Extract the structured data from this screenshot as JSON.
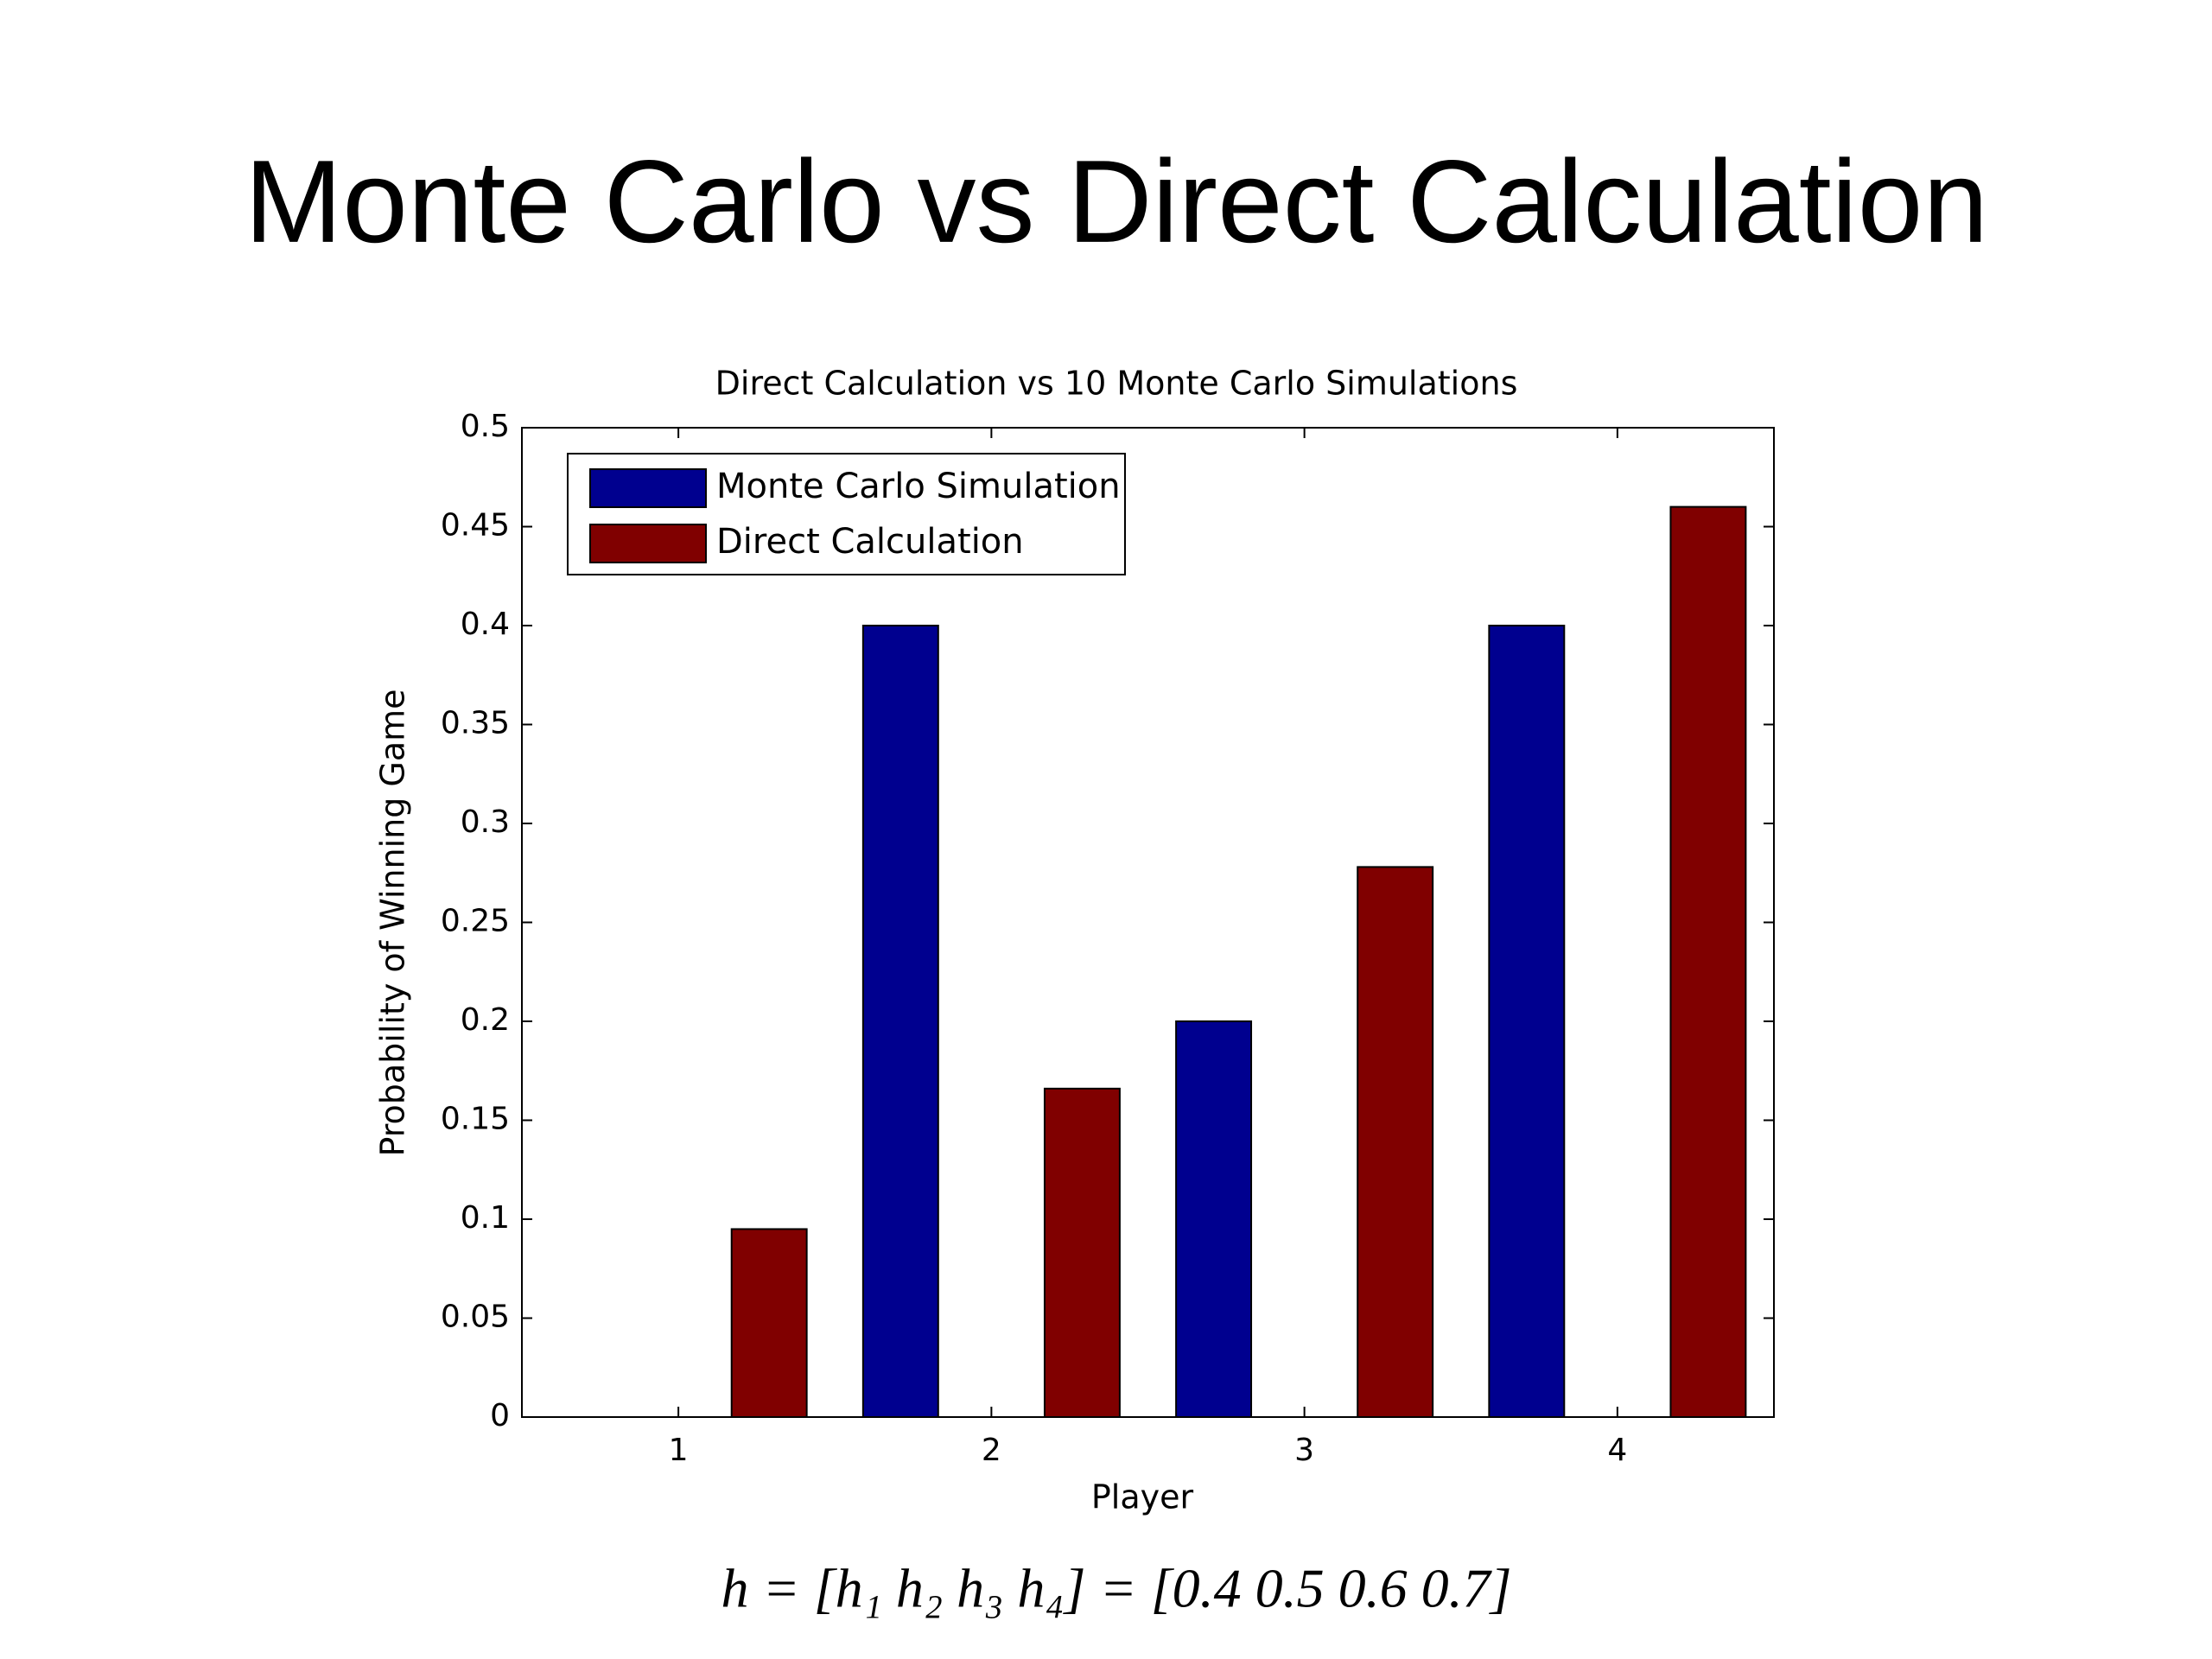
{
  "slide_title": "Monte Carlo vs Direct Calculation",
  "formula": "h = [h₁ h₂ h₃ h₄] = [0.4 0.5 0.6 0.7]",
  "chart_data": {
    "type": "bar",
    "title": "Direct Calculation vs 10 Monte Carlo Simulations",
    "x_label": "Player",
    "y_label": "Probability of Winning Game",
    "categories": [
      "1",
      "2",
      "3",
      "4"
    ],
    "series": [
      {
        "name": "Monte Carlo Simulation",
        "color": "#00008f",
        "values": [
          0,
          0.4,
          0.2,
          0.4
        ]
      },
      {
        "name": "Direct Calculation",
        "color": "#800000",
        "values": [
          0.095,
          0.166,
          0.278,
          0.46
        ]
      }
    ],
    "ylim": [
      0,
      0.5
    ],
    "yticks": [
      0,
      0.05,
      0.1,
      0.15,
      0.2,
      0.25,
      0.3,
      0.35,
      0.4,
      0.45,
      0.5
    ],
    "legend": "upper left"
  }
}
